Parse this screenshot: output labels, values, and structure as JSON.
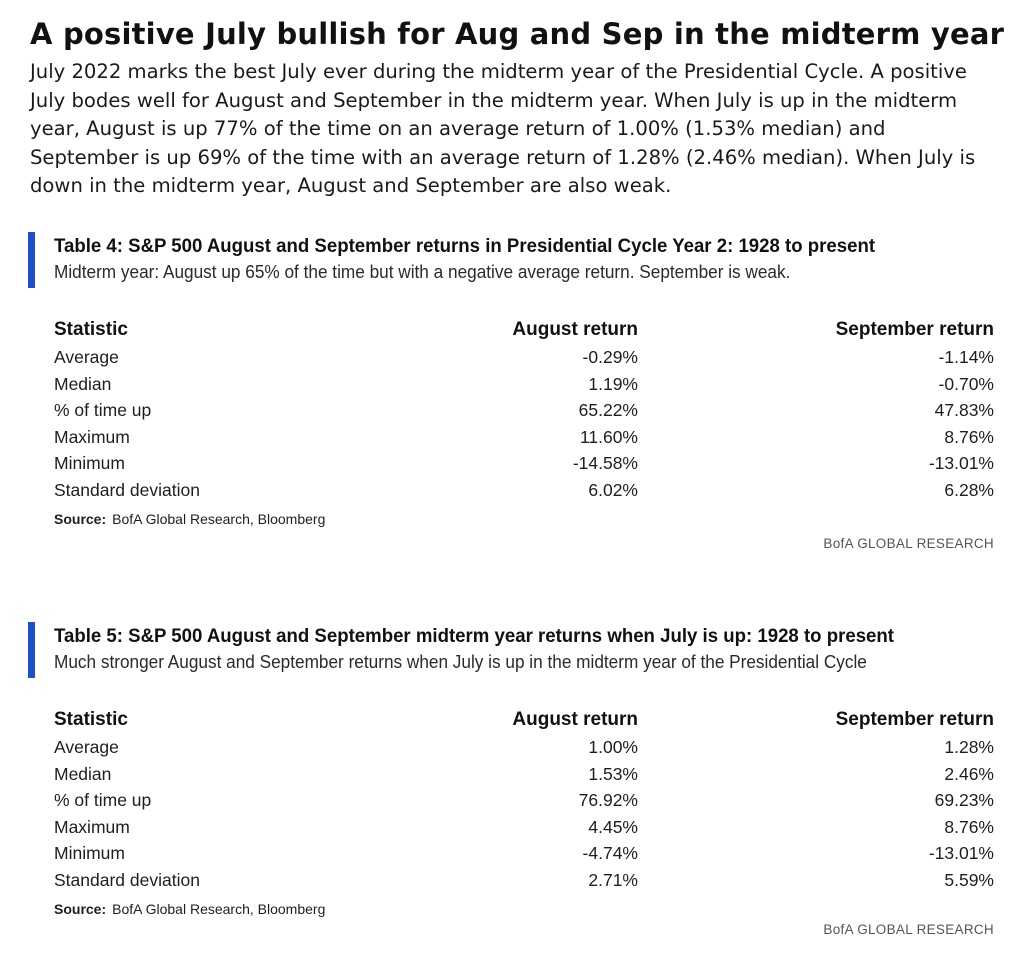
{
  "headline": "A positive July bullish for Aug and Sep in the midterm year",
  "intro": "July 2022 marks the best July ever during the midterm year of the Presidential Cycle. A positive July bodes well for August and September in the midterm year. When July is up in the midterm year, August is up 77% of the time on an average return of 1.00% (1.53% median) and September is up 69% of the time with an average return of 1.28% (2.46% median). When July is down in the midterm year, August and September are also weak.",
  "accent_color": "#1f4fd1",
  "tables": [
    {
      "title": "Table 4: S&P 500 August and September returns in Presidential Cycle Year 2: 1928 to present",
      "subtitle": "Midterm year: August up 65% of the time but with a negative average return. September is weak.",
      "columns": [
        "Statistic",
        "August return",
        "September return"
      ],
      "rows": [
        [
          "Average",
          "-0.29%",
          "-1.14%"
        ],
        [
          "Median",
          "1.19%",
          "-0.70%"
        ],
        [
          "% of time up",
          "65.22%",
          "47.83%"
        ],
        [
          "Maximum",
          "11.60%",
          "8.76%"
        ],
        [
          "Minimum",
          "-14.58%",
          "-13.01%"
        ],
        [
          "Standard deviation",
          "6.02%",
          "6.28%"
        ]
      ],
      "source_label": "Source:",
      "source_text": "BofA Global Research, Bloomberg",
      "brand": "BofA GLOBAL RESEARCH"
    },
    {
      "title": "Table 5: S&P 500 August and September midterm year returns when July is up: 1928 to present",
      "subtitle": "Much stronger August and September returns when July is up in the midterm year of the Presidential Cycle",
      "columns": [
        "Statistic",
        "August return",
        "September return"
      ],
      "rows": [
        [
          "Average",
          "1.00%",
          "1.28%"
        ],
        [
          "Median",
          "1.53%",
          "2.46%"
        ],
        [
          "% of time up",
          "76.92%",
          "69.23%"
        ],
        [
          "Maximum",
          "4.45%",
          "8.76%"
        ],
        [
          "Minimum",
          "-4.74%",
          "-13.01%"
        ],
        [
          "Standard deviation",
          "2.71%",
          "5.59%"
        ]
      ],
      "source_label": "Source:",
      "source_text": "BofA Global Research, Bloomberg",
      "brand": "BofA GLOBAL RESEARCH"
    }
  ]
}
